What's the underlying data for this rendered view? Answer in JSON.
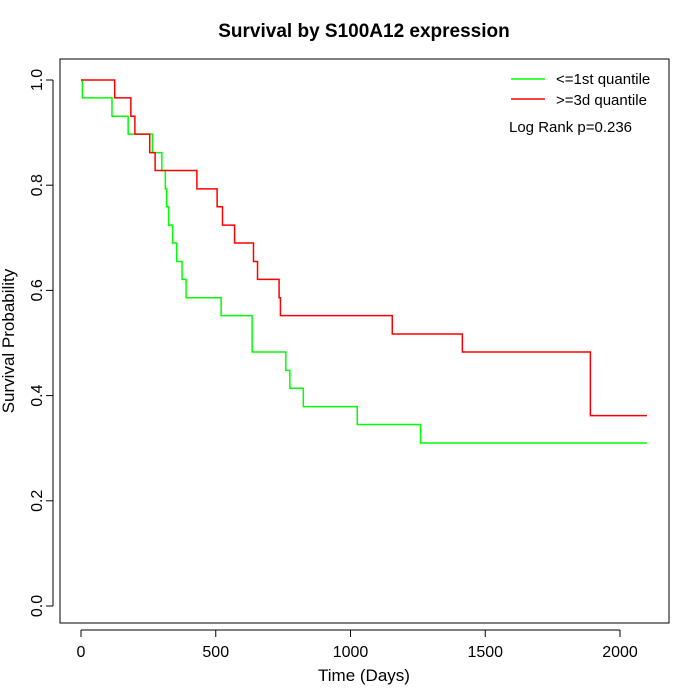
{
  "chart_data": {
    "type": "line",
    "title": "Survival by S100A12 expression",
    "xlabel": "Time (Days)",
    "ylabel": "Survival Probability",
    "xlim": [
      0,
      2100
    ],
    "ylim": [
      0,
      1
    ],
    "xticks": [
      0,
      500,
      1000,
      1500,
      2000
    ],
    "yticks": [
      0.0,
      0.2,
      0.4,
      0.6,
      0.8,
      1.0
    ],
    "xtick_labels": [
      "0",
      "500",
      "1000",
      "1500",
      "2000"
    ],
    "ytick_labels": [
      "0.0",
      "0.2",
      "0.4",
      "0.6",
      "0.8",
      "1.0"
    ],
    "grid": false,
    "step": true,
    "legend_position": "top-right",
    "annotation": "Log Rank p=0.236",
    "series": [
      {
        "name": "<=1st quantile",
        "color": "#00ff00",
        "x": [
          0,
          5,
          115,
          175,
          265,
          300,
          313,
          318,
          325,
          340,
          355,
          375,
          390,
          400,
          520,
          635,
          760,
          775,
          825,
          1025,
          1260,
          2100
        ],
        "y": [
          1.0,
          0.966,
          0.931,
          0.897,
          0.862,
          0.828,
          0.793,
          0.759,
          0.724,
          0.69,
          0.655,
          0.621,
          0.586,
          0.586,
          0.552,
          0.483,
          0.448,
          0.414,
          0.379,
          0.345,
          0.31,
          0.31
        ]
      },
      {
        "name": ">=3d quantile",
        "color": "#ff0000",
        "x": [
          0,
          125,
          185,
          200,
          255,
          265,
          275,
          430,
          505,
          525,
          570,
          640,
          655,
          665,
          735,
          740,
          1155,
          1415,
          1890,
          2100
        ],
        "y": [
          1.0,
          0.966,
          0.931,
          0.897,
          0.862,
          0.862,
          0.828,
          0.793,
          0.759,
          0.724,
          0.69,
          0.655,
          0.621,
          0.621,
          0.586,
          0.552,
          0.517,
          0.483,
          0.362,
          0.362
        ]
      }
    ]
  }
}
